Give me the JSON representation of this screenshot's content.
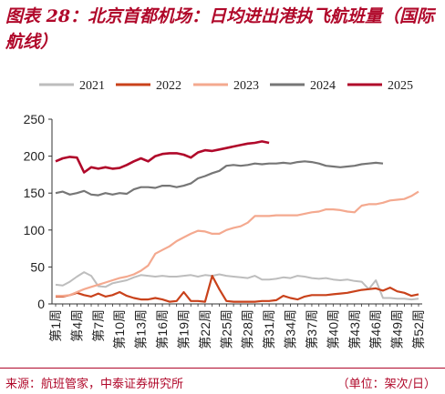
{
  "title": "图表 28：北京首都机场：日均进出港执飞航班量（国际航线）",
  "source": "来源：航班管家，中泰证券研究所",
  "unit": "（单位：架次/日）",
  "colors": {
    "2021": "#bdbdbd",
    "2022": "#c9421b",
    "2023": "#f4a98f",
    "2024": "#767676",
    "2025": "#b0082a",
    "accent": "#b0082a"
  },
  "chart_data": {
    "type": "line",
    "xlabel": "",
    "ylabel": "",
    "ylim": [
      0,
      250
    ],
    "yticks": [
      0,
      50,
      100,
      150,
      200,
      250
    ],
    "xtick_labels": [
      "第1周",
      "第4周",
      "第7周",
      "第10周",
      "第13周",
      "第16周",
      "第19周",
      "第22周",
      "第25周",
      "第28周",
      "第31周",
      "第34周",
      "第37周",
      "第40周",
      "第43周",
      "第46周",
      "第49周",
      "第52周"
    ],
    "grid": false,
    "legend": "top",
    "series": [
      {
        "name": "2021",
        "values": [
          26,
          25,
          30,
          37,
          43,
          38,
          24,
          23,
          28,
          30,
          32,
          36,
          39,
          38,
          37,
          38,
          37,
          37,
          38,
          39,
          37,
          39,
          38,
          40,
          38,
          37,
          36,
          35,
          38,
          33,
          33,
          34,
          36,
          35,
          38,
          37,
          35,
          34,
          35,
          33,
          32,
          33,
          31,
          30,
          20,
          32,
          8,
          8,
          7,
          7,
          6,
          7
        ]
      },
      {
        "name": "2022",
        "values": [
          10,
          10,
          12,
          15,
          12,
          10,
          14,
          10,
          12,
          16,
          11,
          8,
          6,
          6,
          8,
          6,
          3,
          4,
          16,
          4,
          4,
          3,
          38,
          20,
          4,
          3,
          3,
          3,
          3,
          4,
          4,
          5,
          11,
          8,
          6,
          10,
          12,
          12,
          12,
          13,
          14,
          15,
          17,
          19,
          20,
          21,
          18,
          22,
          17,
          15,
          11,
          13
        ]
      },
      {
        "name": "2023",
        "values": [
          11,
          11,
          12,
          16,
          20,
          23,
          26,
          29,
          32,
          35,
          37,
          40,
          45,
          52,
          68,
          73,
          78,
          85,
          90,
          95,
          99,
          98,
          95,
          95,
          100,
          103,
          105,
          110,
          119,
          119,
          119,
          120,
          120,
          120,
          120,
          122,
          124,
          125,
          128,
          128,
          127,
          125,
          124,
          133,
          135,
          135,
          137,
          140,
          141,
          142,
          146,
          152
        ]
      },
      {
        "name": "2024",
        "values": [
          150,
          152,
          148,
          150,
          153,
          148,
          147,
          150,
          148,
          150,
          149,
          155,
          158,
          158,
          157,
          160,
          160,
          158,
          160,
          163,
          170,
          173,
          177,
          180,
          187,
          188,
          187,
          188,
          190,
          189,
          190,
          190,
          191,
          190,
          192,
          193,
          192,
          190,
          187,
          186,
          185,
          186,
          187,
          189,
          190,
          191,
          190
        ]
      },
      {
        "name": "2025",
        "values": [
          193,
          197,
          199,
          198,
          178,
          185,
          183,
          185,
          183,
          184,
          188,
          193,
          197,
          193,
          200,
          203,
          204,
          204,
          202,
          198,
          205,
          208,
          207,
          209,
          211,
          213,
          215,
          217,
          218,
          220,
          218
        ]
      }
    ]
  }
}
